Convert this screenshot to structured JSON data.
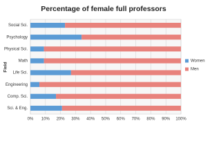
{
  "chart_data": {
    "type": "stacked-barh",
    "title": "Percentage of female full professors",
    "y_label": "Field",
    "categories": [
      "Social Sci.",
      "Psychology",
      "Physical Sci.",
      "Math",
      "Life Sci.",
      "Engineering",
      "Comp. Sci.",
      "Sci. & Eng."
    ],
    "series": [
      {
        "name": "Women",
        "color": "#5b9bd5",
        "values": [
          23,
          34,
          9,
          9,
          27,
          6,
          17,
          21
        ]
      },
      {
        "name": "Men",
        "color": "#e8827c",
        "values": [
          77,
          66,
          91,
          91,
          73,
          94,
          83,
          79
        ]
      }
    ],
    "xlim": [
      0,
      100
    ],
    "xticks": [
      {
        "value": 0,
        "label": "0%"
      },
      {
        "value": 10,
        "label": "10%"
      },
      {
        "value": 20,
        "label": "20%"
      },
      {
        "value": 30,
        "label": "30%"
      },
      {
        "value": 40,
        "label": "40%"
      },
      {
        "value": 50,
        "label": "50%"
      },
      {
        "value": 60,
        "label": "60%"
      },
      {
        "value": 70,
        "label": "70%"
      },
      {
        "value": 80,
        "label": "80%"
      },
      {
        "value": 90,
        "label": "90%"
      },
      {
        "value": 100,
        "label": "100%"
      }
    ],
    "grid": true,
    "legend": "right"
  }
}
